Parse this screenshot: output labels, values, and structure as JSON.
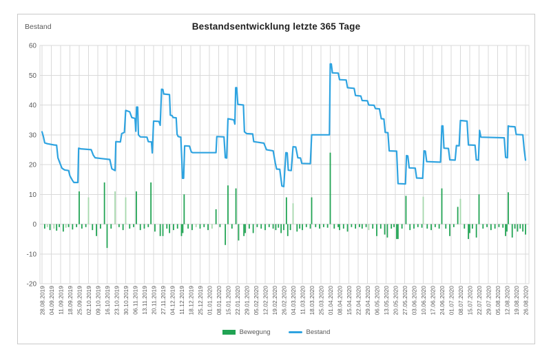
{
  "chart_data": {
    "type": "combo",
    "title": "Bestandsentwicklung letzte 365 Tage",
    "y_axis_label": "Bestand",
    "ylim": [
      -20,
      60
    ],
    "y_ticks": [
      60,
      50,
      40,
      30,
      20,
      10,
      0,
      -10,
      -20
    ],
    "x_tick_labels": [
      "28.08.2019",
      "04.09.2019",
      "11.09.2019",
      "18.09.2019",
      "25.09.2019",
      "02.10.2019",
      "09.10.2019",
      "16.10.2019",
      "23.10.2019",
      "30.10.2019",
      "06.11.2019",
      "13.11.2019",
      "20.11.2019",
      "27.11.2019",
      "04.12.2019",
      "11.12.2019",
      "18.12.2019",
      "25.12.2019",
      "01.01.2020",
      "08.01.2020",
      "15.01.2020",
      "22.01.2020",
      "29.01.2020",
      "05.02.2020",
      "12.02.2020",
      "19.02.2020",
      "26.02.2020",
      "04.03.2020",
      "11.03.2020",
      "18.03.2020",
      "25.03.2020",
      "01.04.2020",
      "08.04.2020",
      "15.04.2020",
      "22.04.2020",
      "29.04.2020",
      "06.05.2020",
      "13.05.2020",
      "20.05.2020",
      "27.05.2020",
      "03.06.2020",
      "10.06.2020",
      "17.06.2020",
      "24.06.2020",
      "01.07.2020",
      "08.07.2020",
      "15.07.2020",
      "22.07.2020",
      "29.07.2020",
      "05.08.2020",
      "12.08.2020",
      "19.08.2020",
      "26.08.2020"
    ],
    "days_per_tick": 7,
    "total_days": 366,
    "grid": true,
    "legend_position": "bottom",
    "colors": {
      "line": "#2EA3E0",
      "bar": "#21A353",
      "bar_light": "#A6D8AC",
      "grid": "#D9D9D9",
      "text": "#595959",
      "title": "#1F1F1F",
      "border": "#C9C9C9"
    },
    "legend": [
      {
        "label": "Bewegung",
        "type": "bar"
      },
      {
        "label": "Bestand",
        "type": "line"
      }
    ],
    "series": [
      {
        "name": "Bewegung",
        "type": "bar",
        "points": [
          [
            2,
            -1.5
          ],
          [
            4,
            -1,
            1
          ],
          [
            6,
            -2
          ],
          [
            9,
            -1.5,
            1
          ],
          [
            11,
            -2.2
          ],
          [
            13,
            -1
          ],
          [
            16,
            -2.5
          ],
          [
            18,
            -1.2,
            1
          ],
          [
            20,
            -1
          ],
          [
            23,
            -1.8
          ],
          [
            26,
            -1
          ],
          [
            28,
            11
          ],
          [
            30,
            -1.5
          ],
          [
            33,
            -1
          ],
          [
            35,
            9,
            1
          ],
          [
            38,
            -2
          ],
          [
            41,
            -4
          ],
          [
            44,
            -1.5
          ],
          [
            47,
            14
          ],
          [
            49,
            -8
          ],
          [
            52,
            -1.5
          ],
          [
            55,
            11,
            1
          ],
          [
            58,
            -1
          ],
          [
            61,
            -2
          ],
          [
            63,
            9,
            1
          ],
          [
            66,
            -1.5
          ],
          [
            69,
            -1
          ],
          [
            71,
            11
          ],
          [
            74,
            -2
          ],
          [
            77,
            -1.5
          ],
          [
            80,
            -1
          ],
          [
            82,
            14
          ],
          [
            85,
            -2.5
          ],
          [
            89,
            -4
          ],
          [
            91,
            -4
          ],
          [
            94,
            -1.5
          ],
          [
            96,
            -3
          ],
          [
            99,
            -2
          ],
          [
            102,
            -1.5
          ],
          [
            105,
            -4
          ],
          [
            106,
            -3
          ],
          [
            107,
            10
          ],
          [
            110,
            -1.5
          ],
          [
            113,
            -2
          ],
          [
            116,
            -1,
            1
          ],
          [
            119,
            -1.5
          ],
          [
            122,
            -1
          ],
          [
            125,
            -2
          ],
          [
            128,
            -1.5,
            1
          ],
          [
            131,
            5
          ],
          [
            134,
            -1
          ],
          [
            138,
            -7
          ],
          [
            140,
            13
          ],
          [
            143,
            -1.5
          ],
          [
            146,
            12
          ],
          [
            148,
            -5.5
          ],
          [
            152,
            -4
          ],
          [
            153,
            -3
          ],
          [
            156,
            -1.5
          ],
          [
            159,
            -3
          ],
          [
            162,
            -1
          ],
          [
            165,
            -1.5
          ],
          [
            168,
            -2
          ],
          [
            171,
            -1
          ],
          [
            174,
            -1.5
          ],
          [
            176,
            -2
          ],
          [
            178,
            -1.2
          ],
          [
            180,
            -3
          ],
          [
            182,
            -2
          ],
          [
            184,
            9
          ],
          [
            185,
            -4
          ],
          [
            187,
            -2
          ],
          [
            189,
            7,
            1
          ],
          [
            192,
            -2.5
          ],
          [
            194,
            -1.5
          ],
          [
            196,
            -2
          ],
          [
            199,
            -1
          ],
          [
            202,
            -1.5
          ],
          [
            203,
            9
          ],
          [
            206,
            -1
          ],
          [
            209,
            -1.5
          ],
          [
            212,
            -1
          ],
          [
            215,
            -1.2
          ],
          [
            217,
            24
          ],
          [
            220,
            -1.5
          ],
          [
            223,
            -1
          ],
          [
            224,
            -2
          ],
          [
            227,
            -1.5
          ],
          [
            230,
            -2.5
          ],
          [
            233,
            -1
          ],
          [
            236,
            -1.5
          ],
          [
            239,
            -1
          ],
          [
            241,
            -1.5
          ],
          [
            244,
            -1
          ],
          [
            246,
            -2,
            1
          ],
          [
            249,
            -1.5
          ],
          [
            252,
            -4
          ],
          [
            255,
            -1.5
          ],
          [
            258,
            -3.5
          ],
          [
            260,
            -4.5
          ],
          [
            263,
            -1.5
          ],
          [
            265,
            -1
          ],
          [
            267,
            -5
          ],
          [
            268,
            -5
          ],
          [
            271,
            -1.5
          ],
          [
            274,
            9.5
          ],
          [
            277,
            -2
          ],
          [
            280,
            -1.5
          ],
          [
            283,
            -1
          ],
          [
            286,
            -1.2
          ],
          [
            287,
            9.2,
            1
          ],
          [
            290,
            -1.5
          ],
          [
            293,
            -2
          ],
          [
            296,
            -1
          ],
          [
            299,
            -1.5
          ],
          [
            301,
            12
          ],
          [
            304,
            -1.5
          ],
          [
            307,
            -4
          ],
          [
            310,
            -1
          ],
          [
            313,
            5.8
          ],
          [
            315,
            8.5,
            1
          ],
          [
            318,
            -1.5
          ],
          [
            321,
            -5
          ],
          [
            322,
            -3
          ],
          [
            324,
            -1.5
          ],
          [
            327,
            -4.5
          ],
          [
            329,
            10
          ],
          [
            332,
            -1.5
          ],
          [
            335,
            -1
          ],
          [
            338,
            -2
          ],
          [
            341,
            -1.5
          ],
          [
            344,
            -1
          ],
          [
            347,
            -1.2
          ],
          [
            349,
            -4
          ],
          [
            350,
            -2.5
          ],
          [
            351,
            10.7
          ],
          [
            354,
            -4.5
          ],
          [
            356,
            -1.5
          ],
          [
            358,
            -2.5
          ],
          [
            360,
            -1.5
          ],
          [
            362,
            -2.5
          ],
          [
            364,
            -3.5
          ]
        ]
      },
      {
        "name": "Bestand",
        "type": "line",
        "points": [
          [
            0,
            31
          ],
          [
            1,
            29.5
          ],
          [
            2,
            27.3
          ],
          [
            4,
            27
          ],
          [
            9,
            26.6
          ],
          [
            11,
            26.5
          ],
          [
            12,
            22.3
          ],
          [
            13.5,
            20.5
          ],
          [
            15,
            18.8
          ],
          [
            17,
            18.2
          ],
          [
            20,
            18
          ],
          [
            21,
            16.2
          ],
          [
            23,
            14.6
          ],
          [
            24,
            14
          ],
          [
            27,
            14
          ],
          [
            27.6,
            25.5
          ],
          [
            29,
            25.3
          ],
          [
            37,
            25
          ],
          [
            38.6,
            23.2
          ],
          [
            40,
            22.3
          ],
          [
            45,
            22
          ],
          [
            51,
            21.7
          ],
          [
            52.6,
            18.6
          ],
          [
            55,
            18
          ],
          [
            55.6,
            27.7
          ],
          [
            59,
            27.6
          ],
          [
            60,
            30.4
          ],
          [
            62,
            30.8
          ],
          [
            63,
            38.2
          ],
          [
            66,
            37.7
          ],
          [
            67.6,
            35.8
          ],
          [
            70,
            35.5
          ],
          [
            70.6,
            31.2
          ],
          [
            71.2,
            39.3
          ],
          [
            72,
            39.3
          ],
          [
            72.6,
            30
          ],
          [
            74,
            29.3
          ],
          [
            79,
            29.2
          ],
          [
            80,
            27.7
          ],
          [
            82.4,
            27.6
          ],
          [
            83,
            23.9
          ],
          [
            84,
            34.6
          ],
          [
            88,
            34.5
          ],
          [
            89,
            33.2
          ],
          [
            90,
            45.3
          ],
          [
            91,
            45.2
          ],
          [
            91.6,
            43.7
          ],
          [
            96,
            43.5
          ],
          [
            96.6,
            36.6
          ],
          [
            98,
            36.4
          ],
          [
            98.7,
            35.8
          ],
          [
            101,
            35.7
          ],
          [
            101.7,
            30.2
          ],
          [
            102.5,
            29.4
          ],
          [
            104.5,
            29.2
          ],
          [
            105.2,
            22
          ],
          [
            105.8,
            15.4
          ],
          [
            106.6,
            15.4
          ],
          [
            107.4,
            26.3
          ],
          [
            111,
            26.2
          ],
          [
            112.4,
            24.2
          ],
          [
            113.5,
            24
          ],
          [
            131,
            24
          ],
          [
            131.6,
            29.4
          ],
          [
            137,
            29.3
          ],
          [
            138,
            22.3
          ],
          [
            139,
            22.2
          ],
          [
            140,
            35.4
          ],
          [
            144.4,
            35
          ],
          [
            145.2,
            33.6
          ],
          [
            145.8,
            45.8
          ],
          [
            146.6,
            45.8
          ],
          [
            147.4,
            40.2
          ],
          [
            151.6,
            40
          ],
          [
            152.4,
            31
          ],
          [
            154,
            30.4
          ],
          [
            158.6,
            30.3
          ],
          [
            159.4,
            27.7
          ],
          [
            167,
            27.2
          ],
          [
            169,
            25
          ],
          [
            174,
            24.6
          ],
          [
            175.6,
            20.5
          ],
          [
            176.6,
            18.5
          ],
          [
            179,
            18.4
          ],
          [
            180.6,
            12.8
          ],
          [
            182,
            12.6
          ],
          [
            183.6,
            24
          ],
          [
            184.6,
            23.9
          ],
          [
            185.4,
            18.1
          ],
          [
            187.6,
            18
          ],
          [
            189,
            26
          ],
          [
            191,
            25.9
          ],
          [
            192.6,
            22.3
          ],
          [
            194.6,
            22.2
          ],
          [
            195.6,
            20.4
          ],
          [
            202,
            20.3
          ],
          [
            203,
            30
          ],
          [
            216.4,
            30
          ],
          [
            217,
            53.8
          ],
          [
            217.8,
            53.8
          ],
          [
            218.6,
            50.8
          ],
          [
            223,
            50.7
          ],
          [
            224,
            48.5
          ],
          [
            229,
            48.4
          ],
          [
            230,
            45.8
          ],
          [
            235,
            45.6
          ],
          [
            236,
            43.2
          ],
          [
            240,
            43
          ],
          [
            241,
            41.5
          ],
          [
            245,
            41.4
          ],
          [
            246,
            40
          ],
          [
            250,
            39.9
          ],
          [
            251,
            38.8
          ],
          [
            254,
            38.7
          ],
          [
            255.4,
            35.4
          ],
          [
            257.4,
            35.3
          ],
          [
            258.4,
            30.8
          ],
          [
            260.4,
            30.7
          ],
          [
            261.4,
            24.6
          ],
          [
            267,
            24.5
          ],
          [
            268,
            13.6
          ],
          [
            273.6,
            13.5
          ],
          [
            274.4,
            23
          ],
          [
            275.4,
            22.9
          ],
          [
            276.4,
            18.9
          ],
          [
            281,
            18.8
          ],
          [
            282,
            15.5
          ],
          [
            286.6,
            15.4
          ],
          [
            287.6,
            24.6
          ],
          [
            288.6,
            24.5
          ],
          [
            289.6,
            21
          ],
          [
            300,
            20.8
          ],
          [
            301,
            33
          ],
          [
            301.8,
            33
          ],
          [
            302.6,
            25.5
          ],
          [
            306,
            25.4
          ],
          [
            307,
            21.6
          ],
          [
            311,
            21.5
          ],
          [
            312,
            26.4
          ],
          [
            314,
            26.3
          ],
          [
            315,
            34.8
          ],
          [
            320,
            34.6
          ],
          [
            321,
            26.6
          ],
          [
            326,
            26.5
          ],
          [
            327,
            21.6
          ],
          [
            328.6,
            21.5
          ],
          [
            329.4,
            31.5
          ],
          [
            330.4,
            29.2
          ],
          [
            348,
            29
          ],
          [
            349,
            22.4
          ],
          [
            350.4,
            22.3
          ],
          [
            351,
            33
          ],
          [
            352,
            32.8
          ],
          [
            356,
            32.7
          ],
          [
            357,
            30.1
          ],
          [
            362,
            30
          ],
          [
            363,
            25
          ],
          [
            364,
            21.5
          ]
        ]
      }
    ]
  }
}
